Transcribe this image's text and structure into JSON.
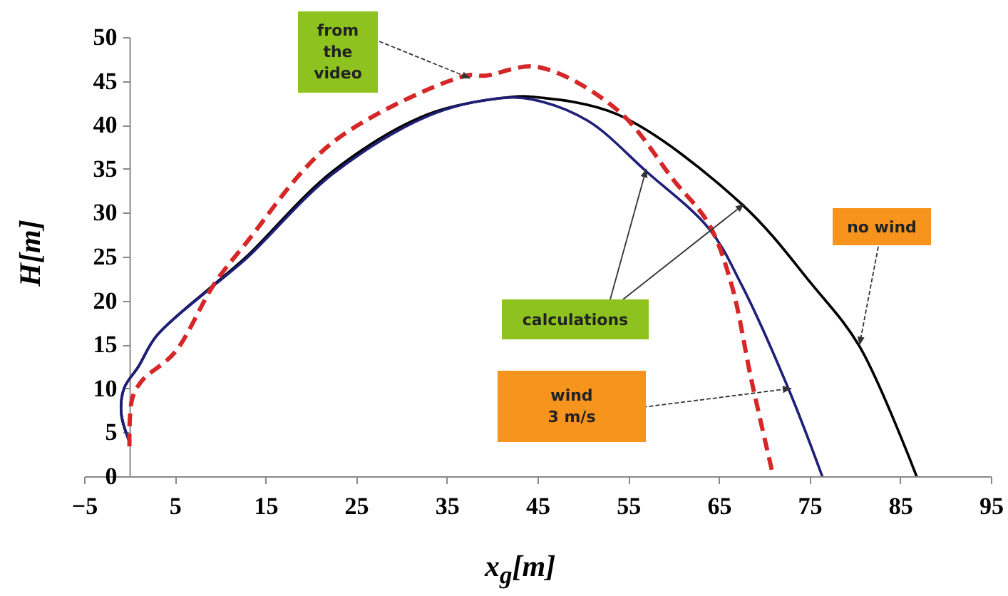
{
  "chart_data": {
    "type": "line",
    "xlabel": "x$_{g}$[m]",
    "ylabel": "H[m]",
    "annotations": [
      {
        "text": "from the video",
        "x": 37.6,
        "y": 45.3
      },
      {
        "text": "calculations",
        "x": 57,
        "y": 35
      },
      {
        "text": "no wind",
        "x": 80.5,
        "y": 14.9
      },
      {
        "text": "wind 3 m/s",
        "x": 73,
        "y": 10
      }
    ],
    "xlim": [
      -5,
      95
    ],
    "xticks": [
      -5,
      5,
      15,
      25,
      35,
      45,
      55,
      65,
      75,
      85,
      95
    ],
    "ylim": [
      0,
      50
    ],
    "yticks": [
      0,
      5,
      10,
      15,
      20,
      25,
      30,
      35,
      40,
      45,
      50
    ],
    "series": [
      {
        "color": "#000000",
        "line_style": "solid",
        "x": [
          -0.1,
          -0.9,
          -0.6,
          1,
          3,
          9.3,
          12.9,
          22.4,
          32.9,
          42.3,
          44.4,
          53.8,
          67.5,
          75.3,
          80.5,
          86.8
        ],
        "values": [
          4.2,
          7.1,
          10,
          12.5,
          16,
          21.8,
          25,
          34.7,
          41.2,
          43.2,
          43.2,
          41.2,
          31,
          21.8,
          14.8,
          0
        ]
      },
      {
        "color": "#1f1f7a",
        "line_style": "solid",
        "x": [
          -0.1,
          -0.9,
          -0.6,
          1,
          3,
          9.3,
          12.9,
          22.4,
          32.9,
          40.5,
          44.4,
          50.5,
          57,
          63.9,
          67.5,
          72.7,
          76.4
        ],
        "values": [
          4.2,
          7.1,
          10,
          12.5,
          16,
          21.7,
          24.8,
          34.4,
          41,
          43,
          42.9,
          40.5,
          34.7,
          28.2,
          21.8,
          9.9,
          0
        ]
      },
      {
        "color": "#d62728",
        "line_style": "dashed",
        "x": [
          0,
          0.3,
          1.4,
          5,
          9.3,
          12.9,
          22.4,
          37.1,
          39.2,
          45,
          53.8,
          60.1,
          63.9,
          66.4,
          68.6,
          71
        ],
        "values": [
          3.4,
          8.8,
          10.9,
          14.1,
          21.8,
          26.6,
          38,
          45.6,
          45.6,
          46.6,
          41.7,
          33.6,
          28.7,
          21.8,
          10.9,
          0
        ]
      }
    ]
  }
}
